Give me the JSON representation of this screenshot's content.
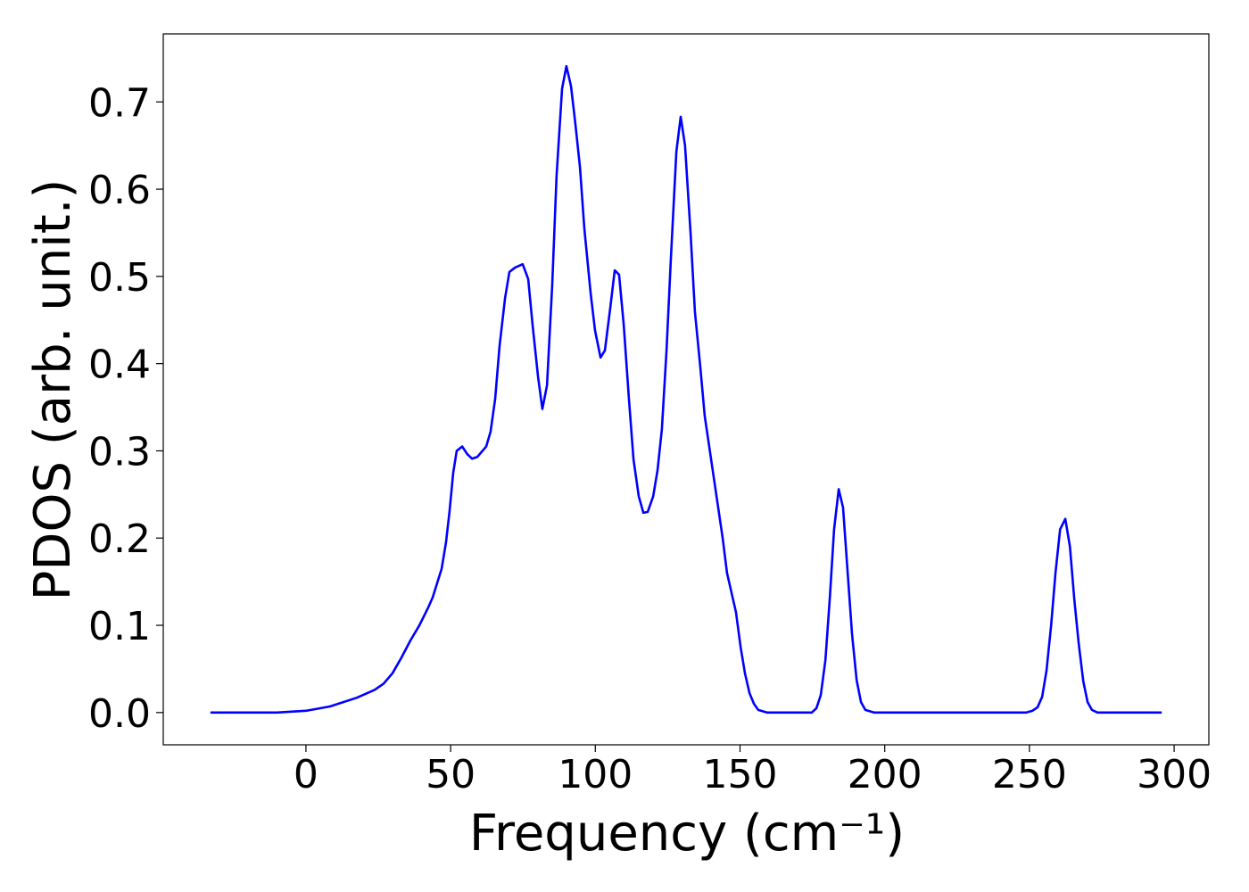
{
  "chart_data": {
    "type": "line",
    "xlabel": "Frequency (cm⁻¹)",
    "ylabel": "PDOS (arb. unit.)",
    "color": "#0000ff",
    "x": [
      -33,
      -10,
      0,
      8.3,
      17.6,
      23.7,
      26.8,
      29.9,
      33,
      36,
      39.2,
      42.2,
      43.8,
      45.3,
      46.9,
      48.4,
      49.6,
      50.9,
      52.1,
      54,
      55.8,
      57.4,
      59.2,
      62.3,
      63.8,
      65.4,
      66.9,
      68.8,
      70.3,
      72.2,
      74.9,
      76.8,
      78.3,
      80.2,
      81.7,
      83.3,
      85.1,
      86.6,
      88.5,
      90,
      91.6,
      93.1,
      94.7,
      96.2,
      98.4,
      99.9,
      101.8,
      103.3,
      105.2,
      106.7,
      108.2,
      109.8,
      111.6,
      113.2,
      115,
      116.6,
      118.1,
      120,
      121.5,
      123,
      124.6,
      126.1,
      128,
      129.5,
      131,
      132.9,
      134.4,
      136.3,
      137.8,
      140.9,
      144,
      145.5,
      148.6,
      150.2,
      151.7,
      153.3,
      154.8,
      156.3,
      159.4,
      174.8,
      176.4,
      177.9,
      179.5,
      181,
      182.5,
      184.1,
      185.6,
      187.2,
      188.7,
      190.3,
      191.8,
      193.3,
      196.4,
      248.8,
      251,
      252.8,
      254.4,
      255.9,
      257.5,
      259,
      260.6,
      262.4,
      264,
      265.5,
      267,
      268.6,
      270.1,
      271.6,
      273.5,
      295.7
    ],
    "values": [
      0,
      0,
      0.002,
      0.007,
      0.017,
      0.026,
      0.033,
      0.045,
      0.063,
      0.082,
      0.1,
      0.12,
      0.132,
      0.148,
      0.165,
      0.195,
      0.23,
      0.275,
      0.3,
      0.305,
      0.296,
      0.291,
      0.293,
      0.305,
      0.322,
      0.36,
      0.42,
      0.475,
      0.505,
      0.51,
      0.514,
      0.497,
      0.445,
      0.385,
      0.348,
      0.375,
      0.49,
      0.615,
      0.715,
      0.741,
      0.718,
      0.675,
      0.625,
      0.555,
      0.48,
      0.438,
      0.407,
      0.415,
      0.465,
      0.507,
      0.502,
      0.445,
      0.36,
      0.29,
      0.248,
      0.229,
      0.23,
      0.248,
      0.278,
      0.325,
      0.415,
      0.52,
      0.643,
      0.683,
      0.65,
      0.55,
      0.46,
      0.395,
      0.34,
      0.27,
      0.2,
      0.16,
      0.115,
      0.075,
      0.045,
      0.022,
      0.01,
      0.003,
      0,
      0,
      0.005,
      0.02,
      0.06,
      0.13,
      0.21,
      0.256,
      0.235,
      0.16,
      0.09,
      0.037,
      0.012,
      0.003,
      0,
      0,
      0.002,
      0.006,
      0.018,
      0.048,
      0.1,
      0.16,
      0.21,
      0.222,
      0.19,
      0.13,
      0.08,
      0.036,
      0.012,
      0.003,
      0,
      0
    ],
    "xlim": [
      -49.3,
      312
    ],
    "ylim": [
      -0.037,
      0.778
    ],
    "xticks": [
      0,
      50,
      100,
      150,
      200,
      250,
      300
    ],
    "yticks": [
      {
        "value": 0,
        "label": "0.0"
      },
      0.1,
      0.2,
      0.3,
      0.4,
      0.5,
      0.6,
      0.7
    ],
    "grid": false
  }
}
